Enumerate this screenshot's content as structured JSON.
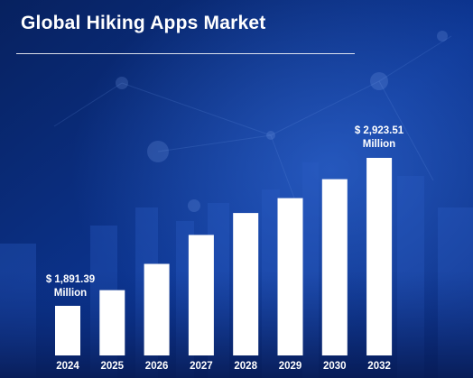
{
  "title": "Global Hiking Apps Market",
  "chart_data": {
    "type": "bar",
    "title": "Global Hiking Apps Market",
    "categories": [
      "2024",
      "2025",
      "2026",
      "2027",
      "2028",
      "2029",
      "2030",
      "2032"
    ],
    "values": [
      1891.39,
      2001,
      2184,
      2386,
      2539,
      2643,
      2775,
      2923.51
    ],
    "unit": "$ Million",
    "bar_color": "#ffffff",
    "label_color": "#ffffff",
    "annotations": [
      {
        "category": "2024",
        "line1": "$ 1,891.39",
        "line2": "Million"
      },
      {
        "category": "2032",
        "line1": "$ 2,923.51",
        "line2": "Million"
      }
    ]
  },
  "colors": {
    "background_dark": "#071f5e",
    "background_mid": "#0d3a9c",
    "accent_glow": "#2f6ad8"
  }
}
